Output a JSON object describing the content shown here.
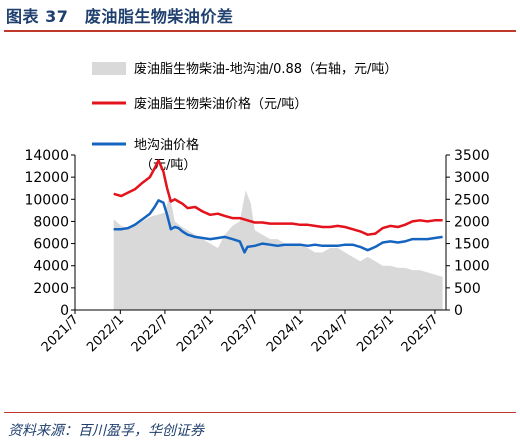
{
  "figure": {
    "title": "图表 37　废油脂生物柴油价差",
    "source": "资料来源：百川盈孚，华创证券"
  },
  "chart_data": {
    "type": "line",
    "legend": [
      {
        "key": "spread",
        "label": "废油脂生物柴油-地沟油/0.88（右轴，元/吨）",
        "color": "#d9d9d9",
        "kind": "area"
      },
      {
        "key": "bio",
        "label": "废油脂生物柴油价格（元/吨）",
        "color": "#e3121b",
        "kind": "line"
      },
      {
        "key": "gutter",
        "label": "地沟油价格",
        "color": "#1565c0",
        "kind": "line"
      }
    ],
    "left_axis_unit": "（元/吨）",
    "left_axis": {
      "min": 0,
      "max": 14000,
      "ticks": [
        "0",
        "2000",
        "4000",
        "6000",
        "8000",
        "10000",
        "12000",
        "14000"
      ]
    },
    "right_axis": {
      "min": 0,
      "max": 3500,
      "ticks": [
        "0",
        "500",
        "1000",
        "1500",
        "2000",
        "2500",
        "3000",
        "3500"
      ]
    },
    "x_ticks": [
      "2021/7",
      "2022/1",
      "2022/7",
      "2023/1",
      "2023/7",
      "2024/1",
      "2024/7",
      "2025/1",
      "2025/7"
    ],
    "x_range": [
      "2021-07-01",
      "2025-08-15"
    ],
    "series": {
      "bio": {
        "x": [
          "2021-12-05",
          "2021-12-20",
          "2022-01-05",
          "2022-02-01",
          "2022-03-01",
          "2022-04-01",
          "2022-05-01",
          "2022-05-20",
          "2022-06-05",
          "2022-06-25",
          "2022-07-10",
          "2022-07-25",
          "2022-08-10",
          "2022-08-25",
          "2022-09-10",
          "2022-10-01",
          "2022-11-01",
          "2022-12-01",
          "2023-01-01",
          "2023-02-01",
          "2023-03-01",
          "2023-04-01",
          "2023-05-01",
          "2023-06-01",
          "2023-07-01",
          "2023-08-01",
          "2023-09-01",
          "2023-10-01",
          "2023-11-01",
          "2023-12-01",
          "2024-01-01",
          "2024-02-01",
          "2024-03-01",
          "2024-04-01",
          "2024-05-01",
          "2024-06-01",
          "2024-07-01",
          "2024-08-01",
          "2024-09-01",
          "2024-10-01",
          "2024-11-01",
          "2024-12-01",
          "2025-01-01",
          "2025-02-01",
          "2025-03-01",
          "2025-04-01",
          "2025-05-01",
          "2025-06-01",
          "2025-07-01",
          "2025-08-01"
        ],
        "y": [
          10500,
          10400,
          10300,
          10600,
          10900,
          11500,
          12000,
          12800,
          13500,
          12500,
          11000,
          9800,
          10000,
          9800,
          9600,
          9200,
          9300,
          8900,
          8600,
          8700,
          8500,
          8300,
          8300,
          8100,
          7900,
          7900,
          7800,
          7800,
          7800,
          7800,
          7700,
          7700,
          7600,
          7500,
          7500,
          7600,
          7500,
          7300,
          7100,
          6800,
          6900,
          7400,
          7600,
          7500,
          7700,
          8000,
          8100,
          8000,
          8100,
          8100
        ]
      },
      "gutter": {
        "x": [
          "2021-12-05",
          "2022-01-05",
          "2022-02-01",
          "2022-03-01",
          "2022-04-01",
          "2022-05-01",
          "2022-05-20",
          "2022-06-05",
          "2022-06-25",
          "2022-07-10",
          "2022-07-25",
          "2022-08-10",
          "2022-08-25",
          "2022-09-10",
          "2022-10-01",
          "2022-11-01",
          "2022-12-01",
          "2023-01-01",
          "2023-02-01",
          "2023-03-01",
          "2023-04-01",
          "2023-05-01",
          "2023-05-20",
          "2023-06-01",
          "2023-07-01",
          "2023-08-01",
          "2023-09-01",
          "2023-10-01",
          "2023-11-01",
          "2023-12-01",
          "2024-01-01",
          "2024-02-01",
          "2024-03-01",
          "2024-04-01",
          "2024-05-01",
          "2024-06-01",
          "2024-07-01",
          "2024-08-01",
          "2024-09-01",
          "2024-10-01",
          "2024-11-01",
          "2024-12-01",
          "2025-01-01",
          "2025-02-01",
          "2025-03-01",
          "2025-04-01",
          "2025-05-01",
          "2025-06-01",
          "2025-07-01",
          "2025-08-01"
        ],
        "y": [
          7300,
          7300,
          7400,
          7700,
          8200,
          8700,
          9300,
          9900,
          9700,
          8600,
          7300,
          7500,
          7400,
          7100,
          6800,
          6600,
          6500,
          6400,
          6500,
          6600,
          6400,
          6200,
          5200,
          5700,
          5800,
          6000,
          5900,
          5800,
          5900,
          5900,
          5900,
          5800,
          5900,
          5800,
          5800,
          5800,
          5900,
          5900,
          5700,
          5400,
          5700,
          6100,
          6200,
          6100,
          6200,
          6400,
          6400,
          6400,
          6500,
          6600
        ]
      },
      "spread": {
        "x": [
          "2021-12-05",
          "2022-01-05",
          "2022-02-01",
          "2022-03-01",
          "2022-04-01",
          "2022-05-01",
          "2022-06-01",
          "2022-07-01",
          "2022-07-20",
          "2022-08-10",
          "2022-09-01",
          "2022-10-01",
          "2022-11-01",
          "2022-12-01",
          "2023-01-01",
          "2023-02-01",
          "2023-03-01",
          "2023-04-01",
          "2023-05-01",
          "2023-05-25",
          "2023-06-15",
          "2023-07-01",
          "2023-08-01",
          "2023-09-01",
          "2023-10-01",
          "2023-11-01",
          "2023-12-01",
          "2024-01-01",
          "2024-02-01",
          "2024-03-01",
          "2024-04-01",
          "2024-05-01",
          "2024-06-01",
          "2024-07-01",
          "2024-08-01",
          "2024-09-01",
          "2024-10-01",
          "2024-11-01",
          "2024-12-01",
          "2025-01-01",
          "2025-02-01",
          "2025-03-01",
          "2025-04-01",
          "2025-05-01",
          "2025-06-01",
          "2025-07-01",
          "2025-08-01"
        ],
        "y": [
          2050,
          1900,
          1850,
          1900,
          2000,
          2100,
          2150,
          2200,
          2600,
          2000,
          1900,
          1800,
          1700,
          1600,
          1500,
          1400,
          1700,
          1900,
          2000,
          2700,
          2400,
          1800,
          1700,
          1600,
          1600,
          1500,
          1500,
          1500,
          1400,
          1300,
          1300,
          1400,
          1400,
          1300,
          1200,
          1100,
          1200,
          1100,
          1000,
          1000,
          950,
          950,
          900,
          900,
          850,
          800,
          750
        ]
      }
    }
  }
}
